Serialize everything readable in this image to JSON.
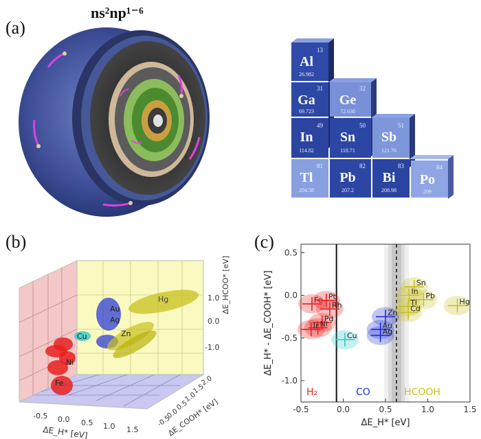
{
  "figure": {
    "panel_a_label": "(a)",
    "panel_b_label": "(b)",
    "panel_c_label": "(c)",
    "config_title": "ns²np¹⁻⁶",
    "colors": {
      "shell_dark": "#2e3f82",
      "h2": "#e82020",
      "co": "#2030d8",
      "hcooh": "#c8c020",
      "cyan": "#30c8c8"
    }
  },
  "periodic_table": [
    {
      "symbol": "Al",
      "number": "13",
      "mass": "26.982"
    },
    {
      "symbol": "Ga",
      "number": "31",
      "mass": "69.723"
    },
    {
      "symbol": "Ge",
      "number": "32",
      "mass": "72.630"
    },
    {
      "symbol": "In",
      "number": "49",
      "mass": "114.82"
    },
    {
      "symbol": "Sn",
      "number": "50",
      "mass": "118.71"
    },
    {
      "symbol": "Sb",
      "number": "51",
      "mass": "121.76"
    },
    {
      "symbol": "Tl",
      "number": "81",
      "mass": "204.38"
    },
    {
      "symbol": "Pb",
      "number": "82",
      "mass": "207.2"
    },
    {
      "symbol": "Bi",
      "number": "83",
      "mass": "208.98"
    },
    {
      "symbol": "Po",
      "number": "84",
      "mass": "209"
    }
  ],
  "panel_b": {
    "xlabel": "ΔE_H* [eV]",
    "ylabel": "ΔE_COOH* [eV]",
    "zlabel": "ΔE_HCOO* [eV]",
    "x_ticks": [
      "-0.5",
      "0.0",
      "0.5",
      "1.0",
      "1.5"
    ],
    "y_ticks": [
      "-0.5",
      "0.0",
      "0.5",
      "1.0",
      "1.5",
      "2.0"
    ],
    "z_ticks": [
      "1.0",
      "0.0",
      "-1.0"
    ],
    "labels": [
      "Hg",
      "Au",
      "Ag",
      "Cu",
      "Zn",
      "Fe",
      "Ni"
    ]
  },
  "chart_data": {
    "type": "scatter",
    "title": "",
    "xlabel": "ΔE_H* [eV]",
    "ylabel": "ΔE_H* - ΔE_COOH* [eV]",
    "xlim": [
      -0.5,
      1.5
    ],
    "ylim": [
      -1.25,
      0.6
    ],
    "x_ticks": [
      "-0.5",
      "0.0",
      "0.5",
      "1.0",
      "1.5"
    ],
    "y_ticks": [
      "0.5",
      "0.0",
      "-0.5",
      "-1.0"
    ],
    "vlines": [
      -0.08,
      0.63
    ],
    "regions": [
      {
        "name": "H₂",
        "color": "#e82020"
      },
      {
        "name": "CO",
        "color": "#2030d8"
      },
      {
        "name": "HCOOH",
        "color": "#c8c020"
      }
    ],
    "series": [
      {
        "name": "H₂",
        "color": "#e82020",
        "points": [
          {
            "label": "Fe",
            "x": -0.37,
            "y": -0.1
          },
          {
            "label": "Pt",
            "x": -0.2,
            "y": -0.06
          },
          {
            "label": "Rh",
            "x": -0.16,
            "y": -0.16
          },
          {
            "label": "Pd",
            "x": -0.25,
            "y": -0.32
          },
          {
            "label": "Ni",
            "x": -0.3,
            "y": -0.38
          },
          {
            "label": "Ir",
            "x": -0.38,
            "y": -0.4
          }
        ]
      },
      {
        "name": "cyan",
        "color": "#30c8c8",
        "points": [
          {
            "label": "Cu",
            "x": 0.02,
            "y": -0.52
          }
        ]
      },
      {
        "name": "CO",
        "color": "#2030d8",
        "points": [
          {
            "label": "Zn",
            "x": 0.5,
            "y": -0.25
          },
          {
            "label": "Au",
            "x": 0.44,
            "y": -0.4
          },
          {
            "label": "Ag",
            "x": 0.44,
            "y": -0.47
          }
        ]
      },
      {
        "name": "HCOOH",
        "color": "#c8c020",
        "points": [
          {
            "label": "Sn",
            "x": 0.84,
            "y": 0.1
          },
          {
            "label": "In",
            "x": 0.78,
            "y": 0.0
          },
          {
            "label": "Pb",
            "x": 0.95,
            "y": -0.05
          },
          {
            "label": "Tl",
            "x": 0.77,
            "y": -0.13
          },
          {
            "label": "Cd",
            "x": 0.77,
            "y": -0.2
          },
          {
            "label": "Hg",
            "x": 1.35,
            "y": -0.12
          }
        ]
      }
    ]
  }
}
